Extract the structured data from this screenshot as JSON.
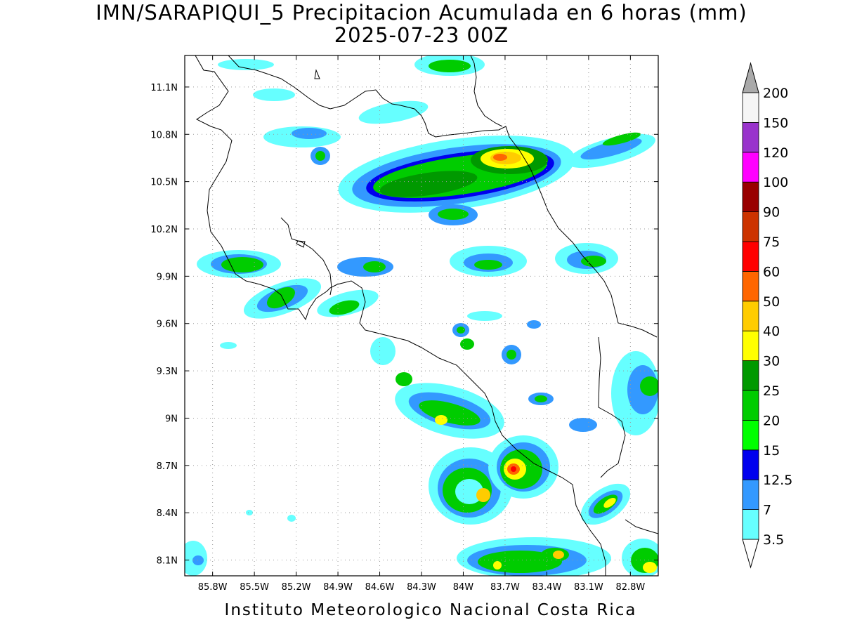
{
  "header": {
    "title_line1": "IMN/SARAPIQUI_5 Precipitacion Acumulada en 6 horas (mm)",
    "title_line2": "2025-07-23 00Z"
  },
  "footer": {
    "credit": "Instituto Meteorologico Nacional Costa Rica"
  },
  "map": {
    "lon_range": [
      -86.0,
      -82.6
    ],
    "lat_range": [
      8.0,
      11.3
    ],
    "lon_ticks": [
      "85.8W",
      "85.5W",
      "85.2W",
      "84.9W",
      "84.6W",
      "84.3W",
      "84W",
      "83.7W",
      "83.4W",
      "83.1W",
      "82.8W"
    ],
    "lat_ticks": [
      "8.1N",
      "8.4N",
      "8.7N",
      "9N",
      "9.3N",
      "9.6N",
      "9.9N",
      "10.2N",
      "10.5N",
      "10.8N",
      "11.1N"
    ],
    "gridlines": true
  },
  "colorbar": {
    "levels": [
      "3.5",
      "7",
      "12.5",
      "15",
      "20",
      "25",
      "30",
      "40",
      "50",
      "60",
      "75",
      "90",
      "100",
      "120",
      "150",
      "200"
    ],
    "colors": [
      "#66ffff",
      "#3399ff",
      "#0000ee",
      "#00ff00",
      "#00cc00",
      "#009900",
      "#ffff00",
      "#ffcc00",
      "#ff6600",
      "#ff0000",
      "#cc3300",
      "#990000",
      "#ff00ff",
      "#9933cc",
      "#f5f5f5",
      "#aaaaaa"
    ]
  }
}
